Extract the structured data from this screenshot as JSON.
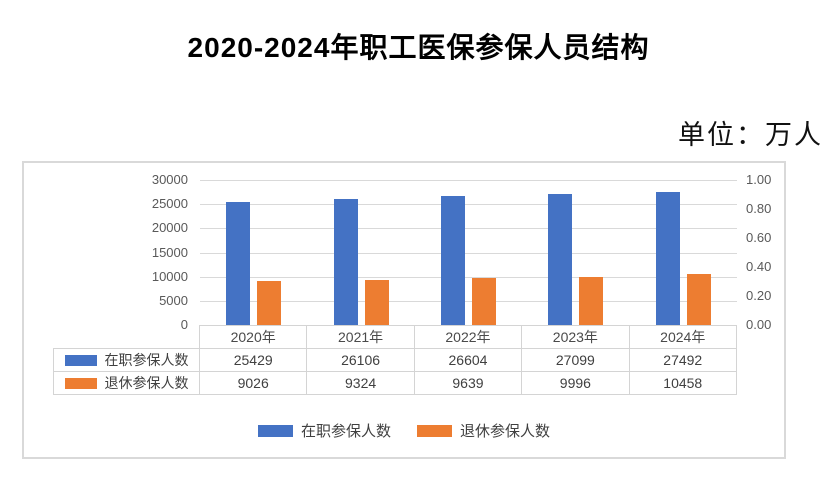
{
  "header": {
    "title": "2020-2024年职工医保参保人员结构",
    "unit_label": "单位：万人"
  },
  "chart_data": {
    "type": "bar",
    "title": "2020-2024年职工医保参保人员结构",
    "unit": "万人",
    "categories": [
      "2020年",
      "2021年",
      "2022年",
      "2023年",
      "2024年"
    ],
    "series": [
      {
        "name": "在职参保人数",
        "color": "#4472C4",
        "values": [
          25429,
          26106,
          26604,
          27099,
          27492
        ]
      },
      {
        "name": "退休参保人数",
        "color": "#ED7D31",
        "values": [
          9026,
          9324,
          9639,
          9996,
          10458
        ]
      }
    ],
    "left_axis": {
      "min": 0,
      "max": 30000,
      "step": 5000,
      "ticks": [
        "30000",
        "25000",
        "20000",
        "15000",
        "10000",
        "5000",
        "0"
      ]
    },
    "right_axis": {
      "min": 0.0,
      "max": 1.0,
      "step": 0.2,
      "ticks": [
        "1.00",
        "0.80",
        "0.60",
        "0.40",
        "0.20",
        "0.00"
      ]
    },
    "grid": true,
    "legend_position": "bottom",
    "data_table_shown": true,
    "colors": {
      "gridline": "#d9d9d9",
      "axis_text": "#595959",
      "table_border": "#d4d4d4"
    }
  }
}
